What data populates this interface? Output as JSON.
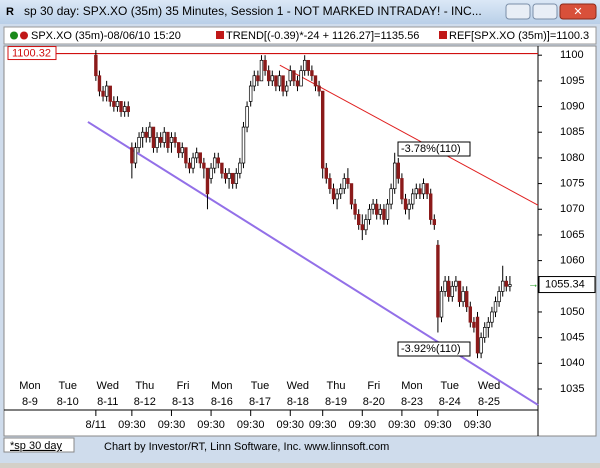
{
  "window": {
    "title": "sp 30 day: SPX.XO (35m) 35 Minutes, Session 1 - NOT MARKED INTRADAY! - INC...",
    "info": [
      "SPX.XO (35m)-08/06/10 15:20",
      "TREND[(-0.39)*-24 + 1126.27]=1135.56",
      "REF[SPX.XO (35m)]=1100.3"
    ],
    "tab": "*sp 30 day",
    "footer": "Chart by Investor/RT, Linn Software, Inc.  www.linnsoft.com"
  },
  "chart_data": {
    "type": "candlestick",
    "open": [
      1100,
      1096,
      1093,
      1092,
      1094,
      1091,
      1090,
      1091,
      1089,
      1090,
      1082,
      1079,
      1082,
      1084,
      1085,
      1084,
      1086,
      1082,
      1084,
      1083,
      1085,
      1083,
      1084,
      1083,
      1081,
      1082,
      1079,
      1078,
      1080,
      1081,
      1079,
      1078,
      1076,
      1078,
      1080,
      1079,
      1077,
      1076,
      1077,
      1075,
      1077,
      1079,
      1086,
      1091,
      1094,
      1096,
      1095,
      1099,
      1097,
      1095,
      1096,
      1094,
      1096,
      1093,
      1095,
      1097,
      1095,
      1094,
      1097,
      1099,
      1097,
      1096,
      1094,
      1093,
      1078,
      1076,
      1074,
      1072,
      1073,
      1074,
      1076,
      1075,
      1071,
      1069,
      1067,
      1066,
      1068,
      1070,
      1071,
      1069,
      1070,
      1068,
      1071,
      1074,
      1079,
      1076,
      1072,
      1070,
      1071,
      1073,
      1074,
      1073,
      1075,
      1073,
      1068,
      1063,
      1049,
      1054,
      1056,
      1053,
      1055,
      1056,
      1052,
      1054,
      1051,
      1048,
      1049,
      1042,
      1045,
      1047,
      1048,
      1050,
      1052,
      1054,
      1056,
      1055
    ],
    "high": [
      1101,
      1097,
      1094,
      1095,
      1094,
      1092,
      1092,
      1091,
      1091,
      1091,
      1083,
      1083,
      1085,
      1086,
      1086,
      1087,
      1086,
      1085,
      1085,
      1086,
      1085,
      1085,
      1085,
      1083,
      1083,
      1082,
      1080,
      1081,
      1082,
      1081,
      1080,
      1078,
      1079,
      1081,
      1081,
      1079,
      1078,
      1078,
      1077,
      1078,
      1080,
      1087,
      1091,
      1095,
      1097,
      1097,
      1100,
      1100,
      1098,
      1097,
      1096,
      1097,
      1096,
      1095,
      1098,
      1097,
      1096,
      1098,
      1100,
      1099,
      1098,
      1096,
      1095,
      1093,
      1079,
      1077,
      1075,
      1074,
      1075,
      1077,
      1078,
      1075,
      1072,
      1070,
      1069,
      1069,
      1071,
      1072,
      1072,
      1071,
      1071,
      1072,
      1075,
      1081,
      1080,
      1077,
      1073,
      1072,
      1074,
      1075,
      1075,
      1076,
      1075,
      1074,
      1069,
      1064,
      1055,
      1057,
      1057,
      1056,
      1057,
      1056,
      1055,
      1055,
      1052,
      1049,
      1050,
      1046,
      1048,
      1049,
      1051,
      1053,
      1055,
      1059,
      1057,
      1057
    ],
    "low": [
      1095,
      1092,
      1091,
      1091,
      1090,
      1089,
      1089,
      1088,
      1088,
      1088,
      1076,
      1078,
      1081,
      1082,
      1083,
      1083,
      1081,
      1081,
      1082,
      1082,
      1081,
      1081,
      1082,
      1080,
      1080,
      1078,
      1077,
      1077,
      1079,
      1078,
      1076,
      1070,
      1075,
      1077,
      1078,
      1076,
      1075,
      1074,
      1074,
      1074,
      1076,
      1078,
      1085,
      1090,
      1093,
      1094,
      1095,
      1096,
      1094,
      1094,
      1093,
      1093,
      1092,
      1092,
      1094,
      1094,
      1093,
      1094,
      1096,
      1096,
      1095,
      1093,
      1092,
      1076,
      1075,
      1073,
      1071,
      1070,
      1072,
      1073,
      1074,
      1070,
      1068,
      1066,
      1064,
      1065,
      1067,
      1069,
      1068,
      1068,
      1067,
      1067,
      1070,
      1073,
      1075,
      1071,
      1069,
      1068,
      1070,
      1072,
      1072,
      1072,
      1072,
      1067,
      1066,
      1046,
      1048,
      1053,
      1052,
      1052,
      1054,
      1051,
      1051,
      1050,
      1047,
      1046,
      1041,
      1041,
      1044,
      1045,
      1047,
      1049,
      1051,
      1053,
      1054,
      1054
    ],
    "close": [
      1096,
      1093,
      1092,
      1094,
      1091,
      1090,
      1091,
      1089,
      1090,
      1089,
      1079,
      1082,
      1084,
      1085,
      1084,
      1086,
      1082,
      1084,
      1083,
      1085,
      1082,
      1084,
      1083,
      1081,
      1082,
      1079,
      1078,
      1080,
      1081,
      1079,
      1078,
      1073,
      1078,
      1080,
      1079,
      1077,
      1076,
      1077,
      1075,
      1077,
      1079,
      1086,
      1090,
      1094,
      1096,
      1095,
      1099,
      1097,
      1095,
      1096,
      1094,
      1096,
      1093,
      1094,
      1097,
      1095,
      1094,
      1097,
      1099,
      1097,
      1096,
      1094,
      1093,
      1078,
      1076,
      1074,
      1072,
      1073,
      1074,
      1076,
      1075,
      1071,
      1069,
      1067,
      1066,
      1068,
      1070,
      1071,
      1069,
      1070,
      1068,
      1071,
      1074,
      1079,
      1076,
      1072,
      1070,
      1071,
      1073,
      1074,
      1073,
      1075,
      1073,
      1068,
      1067,
      1049,
      1054,
      1056,
      1053,
      1055,
      1056,
      1052,
      1054,
      1051,
      1048,
      1047,
      1042,
      1045,
      1047,
      1048,
      1050,
      1052,
      1054,
      1056,
      1055,
      1055.34
    ],
    "up_color": "#ffffff",
    "down_color": "#8b1a1a",
    "xlim": [
      -24.4,
      122.8
    ],
    "xticks": [
      {
        "value": 0,
        "label": "8/11"
      },
      {
        "value": 10,
        "label": "09:30"
      },
      {
        "value": 21,
        "label": "09:30"
      },
      {
        "value": 32,
        "label": "09:30"
      },
      {
        "value": 43,
        "label": "09:30"
      },
      {
        "value": 54,
        "label": "09:30"
      },
      {
        "value": 63,
        "label": "09:30"
      },
      {
        "value": 74,
        "label": "09:30"
      },
      {
        "value": 85,
        "label": "09:30"
      },
      {
        "value": 95,
        "label": "09:30"
      },
      {
        "value": 106,
        "label": "09:30"
      }
    ],
    "day_ticks": [
      {
        "value": -18.3,
        "label": "Mon"
      },
      {
        "value": -7.8,
        "label": "Tue"
      },
      {
        "value": 3.3,
        "label": "Wed"
      },
      {
        "value": 13.6,
        "label": "Thu"
      },
      {
        "value": 24.2,
        "label": "Fri"
      },
      {
        "value": 35,
        "label": "Mon"
      },
      {
        "value": 45.6,
        "label": "Tue"
      },
      {
        "value": 56.1,
        "label": "Wed"
      },
      {
        "value": 66.7,
        "label": "Thu"
      },
      {
        "value": 77.2,
        "label": "Fri"
      },
      {
        "value": 87.8,
        "label": "Mon"
      },
      {
        "value": 98.3,
        "label": "Tue"
      },
      {
        "value": 109.2,
        "label": "Wed"
      }
    ],
    "day_dates": [
      "8-9",
      "8-10",
      "8-11",
      "8-12",
      "8-13",
      "8-16",
      "8-17",
      "8-18",
      "8-19",
      "8-20",
      "8-23",
      "8-24",
      "8-25"
    ],
    "ylim": [
      1031.3,
      1101.4
    ],
    "yticks": [
      1035,
      1040,
      1045,
      1050,
      1055,
      1060,
      1065,
      1070,
      1075,
      1080,
      1085,
      1090,
      1095,
      1100
    ],
    "ref_line": {
      "value": 1100.32,
      "color": "#d01010"
    },
    "trend_lines": [
      {
        "color": "#e02020",
        "x": [
          51.1,
          122.8
        ],
        "y": [
          1098.05,
          1070.8
        ]
      },
      {
        "color": "#9370e8",
        "x": [
          -2.2,
          122.8
        ],
        "y": [
          1087.0,
          1031.9
        ]
      }
    ],
    "annotations": [
      "-3.78%(110)",
      "-3.92%(110)"
    ]
  }
}
